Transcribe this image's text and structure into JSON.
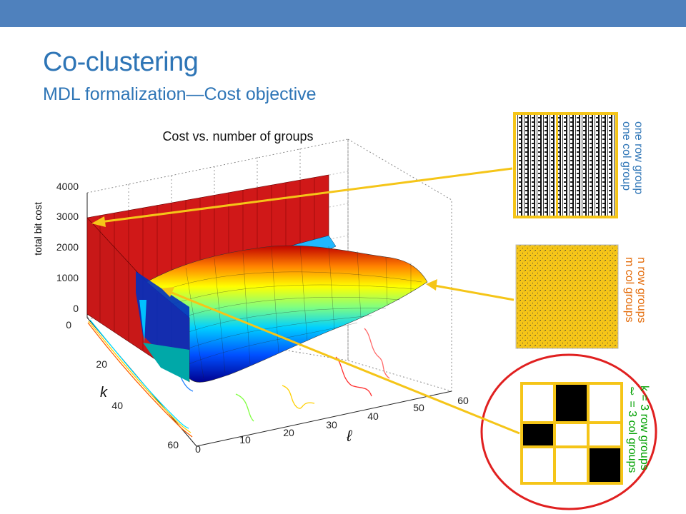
{
  "slide": {
    "title": "Co-clustering",
    "subtitle": "MDL formalization—Cost objective"
  },
  "chart_data": {
    "type": "surface",
    "title": "Cost vs. number of groups",
    "zlabel": "total bit cost",
    "xlabel": "ℓ",
    "ylabel": "k",
    "z_ticks": [
      "0",
      "1000",
      "2000",
      "3000",
      "4000"
    ],
    "k_ticks": [
      "0",
      "20",
      "40",
      "60"
    ],
    "l_ticks": [
      "0",
      "10",
      "20",
      "30",
      "40",
      "50",
      "60"
    ],
    "zlim": [
      0,
      4000
    ],
    "klim": [
      0,
      60
    ],
    "llim": [
      0,
      60
    ],
    "grid": true,
    "colormap": "jet",
    "annotations": {
      "one_group": {
        "line1": "one row group",
        "line2": "one col group",
        "color": "#2e75b6"
      },
      "n_groups": {
        "line1": "n row groups",
        "line2": "m col groups",
        "color": "#e46c0a"
      },
      "k3": {
        "line1": "k = 3 row groups",
        "line2": "ℓ = 3 col groups",
        "color": "#00a000"
      }
    }
  },
  "colors": {
    "accent_bar": "#4f81bd",
    "title": "#2e75b6",
    "arrow": "#f5c518",
    "circle": "#e02020"
  }
}
